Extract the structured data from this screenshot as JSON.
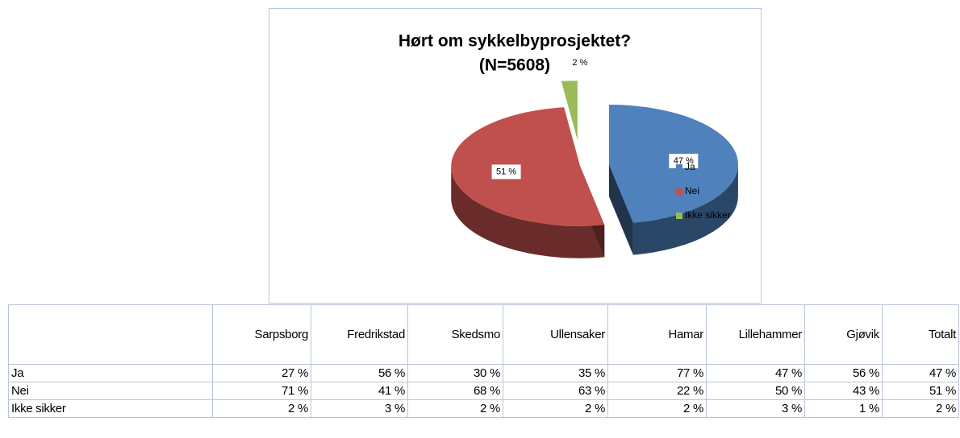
{
  "chart_data": {
    "type": "pie",
    "title": "Hørt om sykkelbyprosjektet?",
    "subtitle": "(N=5608)",
    "categories": [
      "Ja",
      "Nei",
      "Ikke sikker"
    ],
    "values": [
      47,
      51,
      2
    ],
    "value_labels": [
      "47 %",
      "51 %",
      "2 %"
    ],
    "colors": [
      "#4f81bd",
      "#c0504d",
      "#9bbb59"
    ],
    "legend": "right"
  },
  "table": {
    "header": [
      "Sarpsborg",
      "Fredrikstad",
      "Skedsmo",
      "Ullensaker",
      "Hamar",
      "Lillehammer",
      "Gjøvik",
      "Totalt"
    ],
    "rows": [
      {
        "label": "Ja",
        "cells": [
          "27 %",
          "56 %",
          "30 %",
          "35 %",
          "77 %",
          "47 %",
          "56 %",
          "47 %"
        ]
      },
      {
        "label": "Nei",
        "cells": [
          "71 %",
          "41 %",
          "68 %",
          "63 %",
          "22 %",
          "50 %",
          "43 %",
          "51 %"
        ]
      },
      {
        "label": "Ikke sikker",
        "cells": [
          "2 %",
          "3 %",
          "2 %",
          "2 %",
          "2 %",
          "3 %",
          "1 %",
          "2 %"
        ]
      }
    ]
  }
}
